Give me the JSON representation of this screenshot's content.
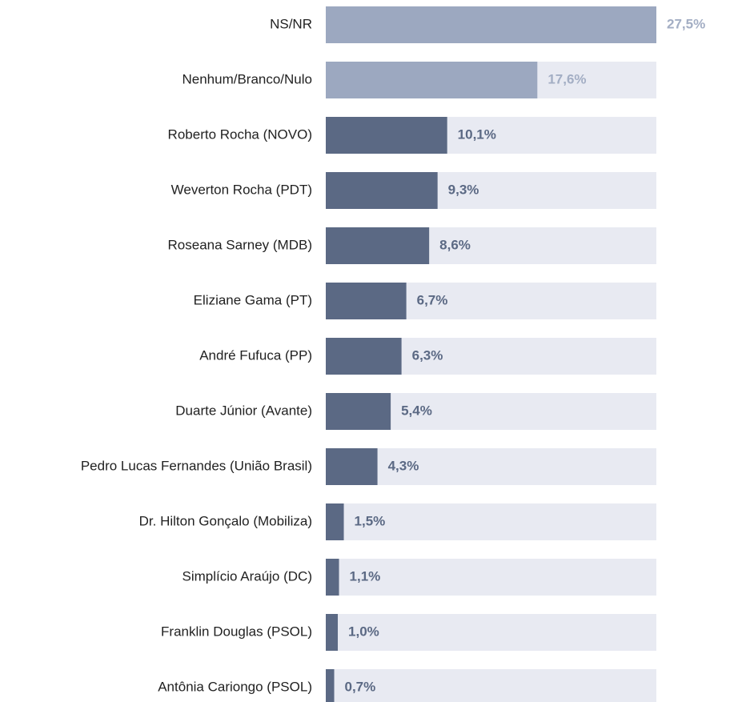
{
  "chart_data": {
    "type": "barh",
    "categories": [
      "NS/NR",
      "Nenhum/Branco/Nulo",
      "Roberto Rocha (NOVO)",
      "Weverton Rocha (PDT)",
      "Roseana Sarney (MDB)",
      "Eliziane Gama (PT)",
      "André Fufuca (PP)",
      "Duarte Júnior (Avante)",
      "Pedro Lucas Fernandes (União Brasil)",
      "Dr. Hilton Gonçalo (Mobiliza)",
      "Simplício Araújo (DC)",
      "Franklin Douglas (PSOL)",
      "Antônia Cariongo (PSOL)"
    ],
    "values": [
      27.5,
      17.6,
      10.1,
      9.3,
      8.6,
      6.7,
      6.3,
      5.4,
      4.3,
      1.5,
      1.1,
      1.0,
      0.7
    ],
    "value_labels": [
      "27,5%",
      "17,6%",
      "10,1%",
      "9,3%",
      "8,6%",
      "6,7%",
      "6,3%",
      "5,4%",
      "4,3%",
      "1,5%",
      "1,1%",
      "1,0%",
      "0,7%"
    ],
    "colors": [
      "#9ca8c0",
      "#9ca8c0",
      "#5b6984",
      "#5b6984",
      "#5b6984",
      "#5b6984",
      "#5b6984",
      "#5b6984",
      "#5b6984",
      "#5b6984",
      "#5b6984",
      "#5b6984",
      "#5b6984"
    ],
    "label_colors": [
      "#a3aec4",
      "#a3aec4",
      "#5b6984",
      "#5b6984",
      "#5b6984",
      "#5b6984",
      "#5b6984",
      "#5b6984",
      "#5b6984",
      "#5b6984",
      "#5b6984",
      "#5b6984",
      "#5b6984"
    ],
    "track_color": "#e8eaf2"
  }
}
